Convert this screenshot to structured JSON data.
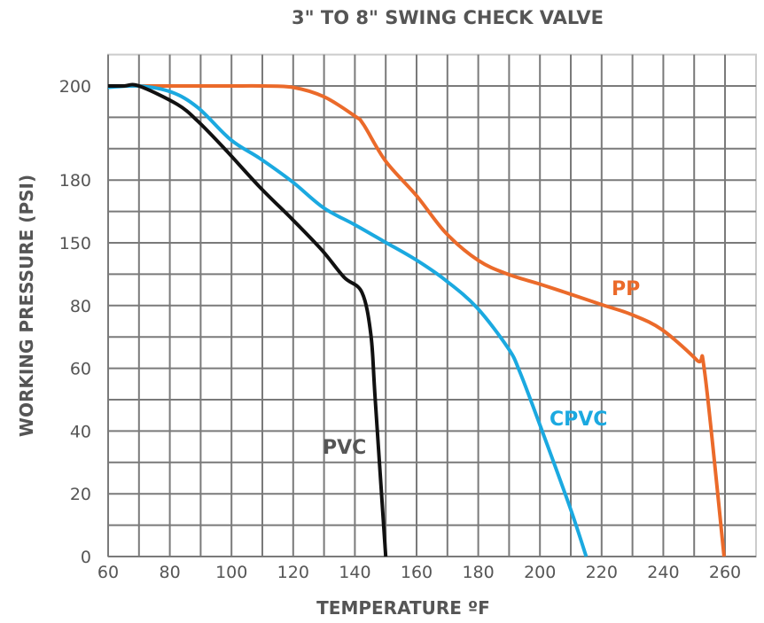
{
  "chart_data": {
    "type": "line",
    "title": "3\" TO 8\" SWING CHECK VALVE",
    "xlabel": "TEMPERATURE ºF",
    "ylabel": "WORKING PRESSURE (PSI)",
    "xlim": [
      60,
      270
    ],
    "x_ticks": [
      60,
      80,
      100,
      120,
      140,
      160,
      180,
      200,
      220,
      240,
      260
    ],
    "y_ticks": [
      0,
      20,
      40,
      60,
      80,
      150,
      180,
      200
    ],
    "y_scale": "non-uniform (tick labels unevenly spaced)",
    "grid": true,
    "series": [
      {
        "name": "PP",
        "color": "#eb6a2a",
        "points": [
          [
            60,
            200
          ],
          [
            70,
            200
          ],
          [
            80,
            200
          ],
          [
            90,
            200
          ],
          [
            100,
            200
          ],
          [
            110,
            200
          ],
          [
            120,
            199.7
          ],
          [
            130,
            197.7
          ],
          [
            140,
            193.6
          ],
          [
            142.8,
            191.8
          ],
          [
            150,
            184
          ],
          [
            160,
            172.5
          ],
          [
            169.5,
            154.7
          ],
          [
            180,
            130.4
          ],
          [
            189.6,
            115
          ],
          [
            200,
            103.9
          ],
          [
            210,
            92.6
          ],
          [
            220,
            81
          ],
          [
            229.8,
            77.1
          ],
          [
            239.6,
            72.3
          ],
          [
            251,
            62.5
          ],
          [
            253.4,
            58.8
          ],
          [
            259.7,
            0
          ]
        ]
      },
      {
        "name": "CPVC",
        "color": "#1ba9e0",
        "points": [
          [
            60,
            199.7
          ],
          [
            70,
            200
          ],
          [
            80.5,
            198.7
          ],
          [
            89.1,
            195.4
          ],
          [
            99.7,
            188.6
          ],
          [
            109.2,
            184.6
          ],
          [
            119.8,
            179.1
          ],
          [
            129.8,
            166.8
          ],
          [
            139.9,
            158.7
          ],
          [
            149.5,
            150.6
          ],
          [
            160,
            130.6
          ],
          [
            169.6,
            107.7
          ],
          [
            179.6,
            79.3
          ],
          [
            189.7,
            66.4
          ],
          [
            193.5,
            58.8
          ],
          [
            200.2,
            41.4
          ],
          [
            209.8,
            15.5
          ],
          [
            215,
            0
          ]
        ]
      },
      {
        "name": "PVC",
        "color": "#111111",
        "points": [
          [
            60,
            200
          ],
          [
            65.2,
            200.3
          ],
          [
            70,
            200
          ],
          [
            82.4,
            196.1
          ],
          [
            89.1,
            192.5
          ],
          [
            97.7,
            186.7
          ],
          [
            109.2,
            176.6
          ],
          [
            119.8,
            161.1
          ],
          [
            129.3,
            141.9
          ],
          [
            136.5,
            111.6
          ],
          [
            142.3,
            94.6
          ],
          [
            145.2,
            70.6
          ],
          [
            146.6,
            50
          ],
          [
            150,
            0
          ]
        ]
      }
    ]
  }
}
